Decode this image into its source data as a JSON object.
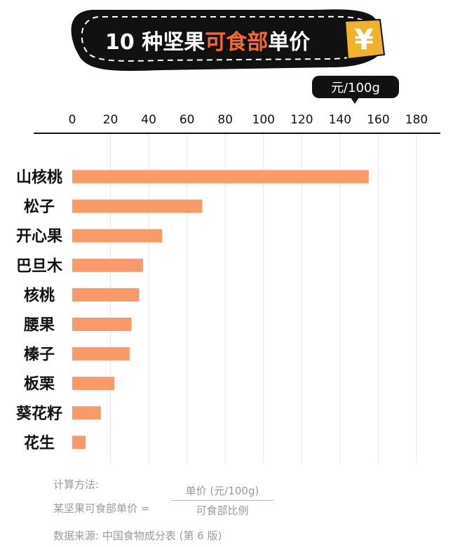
{
  "banner": {
    "title_prefix": "10 种坚果",
    "title_highlight": "可食部",
    "title_suffix": "单价",
    "yen_symbol": "¥",
    "unit_tag": "元/100g"
  },
  "colors": {
    "bar": "#f99a68",
    "highlight": "#f56a2a",
    "banner_bg": "#111111",
    "yen_bg": "#f0b12b"
  },
  "chart_data": {
    "type": "bar",
    "orientation": "horizontal",
    "unit": "元/100g",
    "categories": [
      "山核桃",
      "松子",
      "开心果",
      "巴旦木",
      "核桃",
      "腰果",
      "榛子",
      "板栗",
      "葵花籽",
      "花生"
    ],
    "values": [
      155,
      68,
      47,
      37,
      35,
      31,
      30,
      22,
      15,
      7
    ],
    "xlim": [
      0,
      180
    ],
    "xticks": [
      "0",
      "20",
      "40",
      "60",
      "80",
      "100",
      "120",
      "140",
      "160",
      "180"
    ],
    "grid": true
  },
  "notes": {
    "method_label": "计算方法:",
    "formula_left": "某坚果可食部单价 =",
    "formula_numerator": "单价 (元/100g)",
    "formula_denominator": "可食部比例",
    "source": "数据来源: 中国食物成分表 (第 6 版)"
  }
}
